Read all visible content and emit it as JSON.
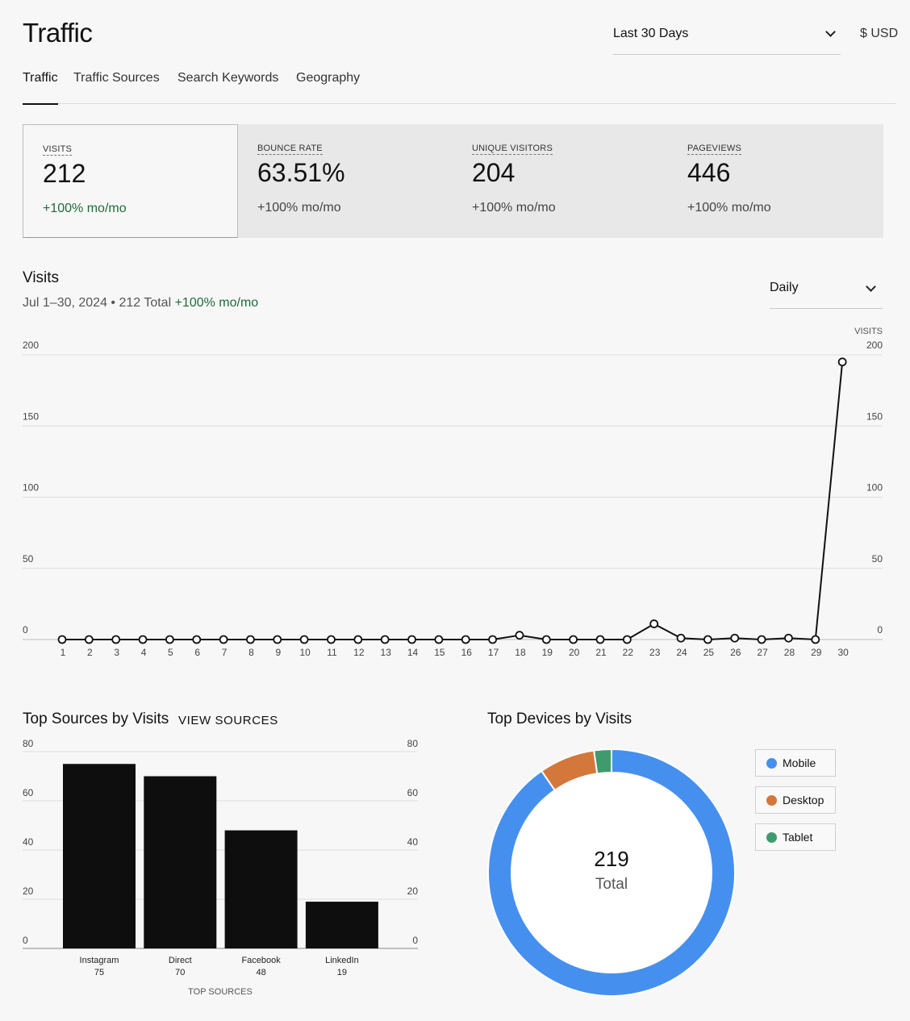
{
  "header": {
    "title": "Traffic",
    "date_range": "Last 30 Days",
    "currency": "$ USD"
  },
  "tabs": [
    {
      "label": "Traffic",
      "active": true
    },
    {
      "label": "Traffic Sources",
      "active": false
    },
    {
      "label": "Search Keywords",
      "active": false
    },
    {
      "label": "Geography",
      "active": false
    }
  ],
  "metrics": [
    {
      "label": "VISITS",
      "value": "212",
      "change": "+100% mo/mo",
      "selected": true
    },
    {
      "label": "BOUNCE RATE",
      "value": "63.51%",
      "change": "+100% mo/mo",
      "selected": false
    },
    {
      "label": "UNIQUE VISITORS",
      "value": "204",
      "change": "+100% mo/mo",
      "selected": false
    },
    {
      "label": "PAGEVIEWS",
      "value": "446",
      "change": "+100% mo/mo",
      "selected": false
    }
  ],
  "visits": {
    "title": "Visits",
    "subtitle": "Jul 1–30, 2024 • 212 Total",
    "subtitle_change": "+100% mo/mo",
    "granularity": "Daily",
    "axis_label": "VISITS"
  },
  "sources": {
    "title": "Top Sources by Visits",
    "view_link": "VIEW SOURCES",
    "x_label": "TOP SOURCES"
  },
  "devices": {
    "title": "Top Devices by Visits",
    "total": "219",
    "total_label": "Total",
    "legend": [
      {
        "label": "Mobile",
        "color": "#4590ee"
      },
      {
        "label": "Desktop",
        "color": "#d4773a"
      },
      {
        "label": "Tablet",
        "color": "#3f9a6d"
      }
    ]
  },
  "chart_data": [
    {
      "type": "line",
      "title": "Visits",
      "ylabel": "VISITS",
      "x": [
        1,
        2,
        3,
        4,
        5,
        6,
        7,
        8,
        9,
        10,
        11,
        12,
        13,
        14,
        15,
        16,
        17,
        18,
        19,
        20,
        21,
        22,
        23,
        24,
        25,
        26,
        27,
        28,
        29,
        30
      ],
      "values": [
        0,
        0,
        0,
        0,
        0,
        0,
        0,
        0,
        0,
        0,
        0,
        0,
        0,
        0,
        0,
        0,
        0,
        3,
        0,
        0,
        0,
        0,
        11,
        1,
        0,
        1,
        0,
        1,
        0,
        195
      ],
      "ylim": [
        0,
        200
      ],
      "yticks": [
        0,
        50,
        100,
        150,
        200
      ],
      "grid": true
    },
    {
      "type": "bar",
      "xlabel": "TOP SOURCES",
      "categories": [
        "Instagram",
        "Direct",
        "Facebook",
        "LinkedIn"
      ],
      "values": [
        75,
        70,
        48,
        19
      ],
      "ylim": [
        0,
        80
      ],
      "yticks": [
        0,
        20,
        40,
        60,
        80
      ],
      "grid": true
    },
    {
      "type": "pie",
      "title": "Top Devices by Visits",
      "categories": [
        "Mobile",
        "Desktop",
        "Tablet"
      ],
      "values": [
        198,
        16,
        5
      ],
      "colors": [
        "#4590ee",
        "#d4773a",
        "#3f9a6d"
      ],
      "total": 219
    }
  ]
}
